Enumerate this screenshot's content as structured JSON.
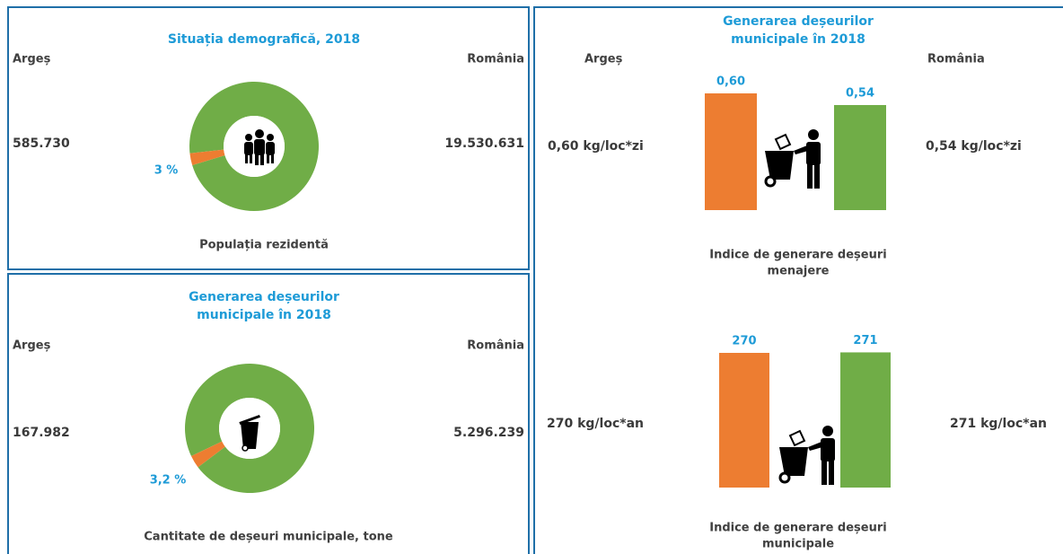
{
  "panels": [
    {
      "title": [
        "Situația demografică, 2018"
      ],
      "left_label": "Argeș",
      "right_label": "România",
      "left_value": "585.730",
      "right_value": "19.530.631",
      "chart": {
        "type": "donut",
        "share": 3,
        "share_label": "3 %",
        "colors": [
          "#ed7d31",
          "#70ad47"
        ]
      },
      "caption": [
        "Populația rezidentă"
      ]
    },
    {
      "title": [
        "Generarea deșeurilor",
        "municipale în 2018"
      ],
      "left_label": "Argeș",
      "right_label": "România",
      "left_value": "167.982",
      "right_value": "5.296.239",
      "chart": {
        "type": "donut",
        "share": 3.2,
        "share_label": "3,2 %",
        "colors": [
          "#ed7d31",
          "#70ad47"
        ]
      },
      "caption": [
        "Cantitate de deșeuri municipale, tone"
      ]
    },
    {
      "title": [
        "Generarea deșeurilor",
        "municipale în 2018"
      ],
      "left_label": "Argeș",
      "right_label": "România",
      "charts": [
        {
          "type": "bar",
          "values": [
            0.6,
            0.54
          ],
          "value_labels": [
            "0,60",
            "0,54"
          ],
          "colors": [
            "#ed7d31",
            "#70ad47"
          ],
          "ylim": [
            0,
            0.6
          ],
          "left_text": "0,60 kg/loc*zi",
          "right_text": "0,54 kg/loc*zi",
          "caption": [
            "Indice de generare deșeuri",
            "menajere"
          ]
        },
        {
          "type": "bar",
          "values": [
            270,
            271
          ],
          "value_labels": [
            "270",
            "271"
          ],
          "colors": [
            "#ed7d31",
            "#70ad47"
          ],
          "ylim": [
            0,
            270
          ],
          "left_text": "270 kg/loc*an",
          "right_text": "271 kg/loc*an",
          "caption": [
            "Indice de generare deșeuri",
            "municipale"
          ]
        }
      ]
    }
  ]
}
